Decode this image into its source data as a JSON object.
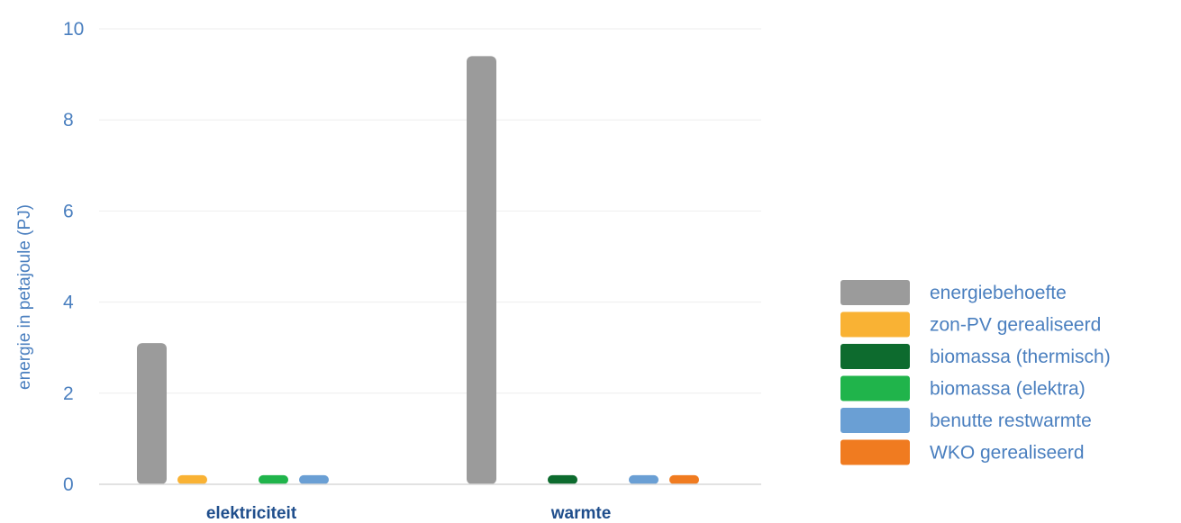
{
  "chart_data": {
    "type": "bar",
    "categories": [
      "elektriciteit",
      "warmte"
    ],
    "ylabel": "energie in petajoule (PJ)",
    "ylim": [
      0,
      10
    ],
    "yticks": [
      0,
      2,
      4,
      6,
      8,
      10
    ],
    "grid": true,
    "legend_position": "right",
    "series": [
      {
        "name": "energiebehoefte",
        "color": "#9b9b9b",
        "values": [
          3.1,
          9.4
        ]
      },
      {
        "name": "zon-PV gerealiseerd",
        "color": "#f9b234",
        "values": [
          0.2,
          0
        ]
      },
      {
        "name": "biomassa (thermisch)",
        "color": "#0d6b2e",
        "values": [
          0,
          0.2
        ]
      },
      {
        "name": "biomassa (elektra)",
        "color": "#20b44b",
        "values": [
          0.2,
          0
        ]
      },
      {
        "name": "benutte restwarmte",
        "color": "#6a9fd4",
        "values": [
          0.2,
          0.2
        ]
      },
      {
        "name": "WKO gerealiseerd",
        "color": "#f07b20",
        "values": [
          0,
          0.2
        ]
      }
    ]
  }
}
